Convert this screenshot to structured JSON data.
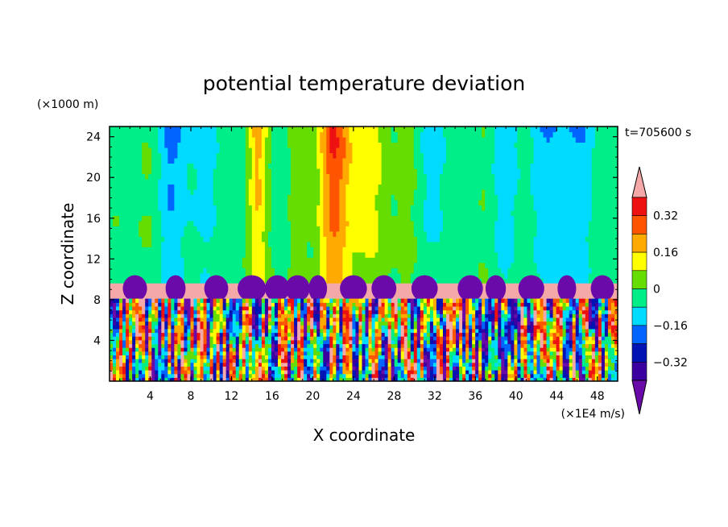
{
  "chart_data": {
    "type": "heatmap",
    "title": "potential temperature deviation",
    "xlabel": "X coordinate",
    "ylabel": "Z coordinate",
    "x_unit": "(×1E4 m/s)",
    "y_unit": "(×1000 m)",
    "time_label": "t=705600 s",
    "xlim": [
      0,
      50
    ],
    "ylim": [
      0,
      25
    ],
    "x_ticks": [
      "4",
      "8",
      "12",
      "16",
      "20",
      "24",
      "28",
      "32",
      "36",
      "40",
      "44",
      "48"
    ],
    "y_ticks": [
      "4",
      "8",
      "12",
      "16",
      "20",
      "24"
    ],
    "colorbar": {
      "tick_labels": [
        "0.32",
        "0.16",
        "0",
        "−0.16",
        "−0.32"
      ],
      "tick_values": [
        0.32,
        0.16,
        0,
        -0.16,
        -0.32
      ],
      "levels": [
        -0.4,
        -0.32,
        -0.24,
        -0.16,
        -0.08,
        0,
        0.08,
        0.16,
        0.24,
        0.32,
        0.4
      ],
      "colors": [
        "#6a0aa8",
        "#3a00a0",
        "#0014b4",
        "#0064ff",
        "#00dcff",
        "#00ee88",
        "#66dd00",
        "#ffff00",
        "#ffaa00",
        "#ff5500",
        "#ee1111",
        "#f4a8a8"
      ]
    },
    "layers": [
      {
        "region": "z 10–25",
        "description_value": "near 0 with warm columns",
        "max_value_approx": 0.32,
        "max_x_approx": 21.5
      },
      {
        "region": "z 8–9.5",
        "value_approx": 0.4
      },
      {
        "region": "z 0–8",
        "range_approx": [
          -0.4,
          0.4
        ]
      }
    ]
  }
}
